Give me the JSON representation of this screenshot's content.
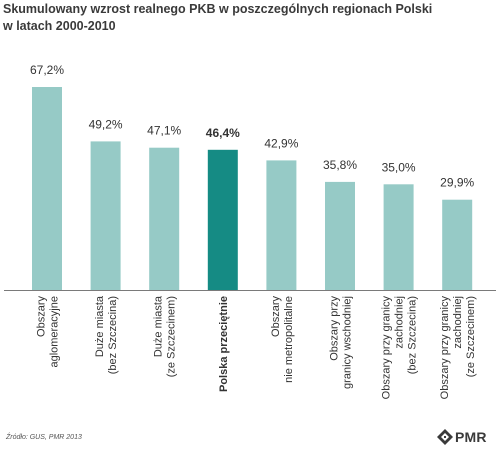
{
  "title_lines": [
    "Skumulowany wzrost realnego PKB w poszczególnych regionach Polski",
    "w latach 2000-2010"
  ],
  "source": "Źródło: GUS, PMR 2013",
  "logo": {
    "text": "PMR",
    "icon": "pmr-logo-icon"
  },
  "colors": {
    "bar": "#96cac6",
    "highlight": "#158b84",
    "axis": "#7a7a7a",
    "text": "#333333"
  },
  "chart_data": {
    "type": "bar",
    "categories": [
      [
        "Obszary",
        "aglomeracyjne"
      ],
      [
        "Duże miasta",
        "(bez Szczecina)"
      ],
      [
        "Duże miasta",
        "(ze Szczecinem)"
      ],
      [
        "Polska przeciętnie"
      ],
      [
        "Obszary",
        "nie metropolitalne"
      ],
      [
        "Obszary przy",
        "granicy wschodniej"
      ],
      [
        "Obszary przy granicy",
        "zachodniej",
        "(bez Szczecina)"
      ],
      [
        "Obszary przy granicy",
        "zachodniej",
        "(ze Szczecinem)"
      ]
    ],
    "values": [
      67.2,
      49.2,
      47.1,
      46.4,
      42.9,
      35.8,
      35.0,
      29.9
    ],
    "value_labels": [
      "67,2%",
      "49,2%",
      "47,1%",
      "46,4%",
      "42,9%",
      "35,8%",
      "35,0%",
      "29,9%"
    ],
    "highlight_index": 3,
    "ylim": [
      0,
      67.2
    ],
    "grid": false,
    "xlabel": "",
    "ylabel": ""
  }
}
